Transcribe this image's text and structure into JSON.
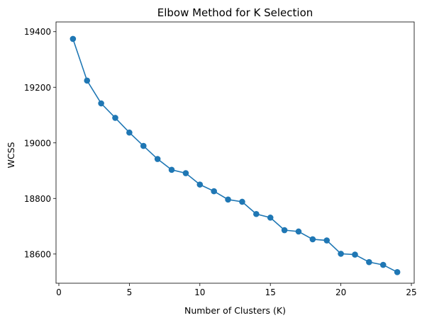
{
  "chart_data": {
    "type": "line",
    "title": "Elbow Method for K Selection",
    "xlabel": "Number of Clusters (K)",
    "ylabel": "WCSS",
    "xlim": [
      -0.2,
      25.2
    ],
    "ylim": [
      18495,
      19435
    ],
    "xticks": [
      0,
      5,
      10,
      15,
      20,
      25
    ],
    "yticks": [
      18600,
      18800,
      19000,
      19200,
      19400
    ],
    "grid": false,
    "legend": "none",
    "marker": "circle",
    "color": "#1f77b4",
    "series": [
      {
        "x": [
          1,
          2,
          3,
          4,
          5,
          6,
          7,
          8,
          9,
          10,
          11,
          12,
          13,
          14,
          15,
          16,
          17,
          18,
          19,
          20,
          21,
          22,
          23,
          24
        ],
        "values": [
          19374,
          19224,
          19142,
          19090,
          19037,
          18989,
          18942,
          18903,
          18891,
          18850,
          18826,
          18796,
          18788,
          18744,
          18731,
          18686,
          18681,
          18653,
          18649,
          18601,
          18598,
          18571,
          18561,
          18535
        ]
      }
    ]
  }
}
